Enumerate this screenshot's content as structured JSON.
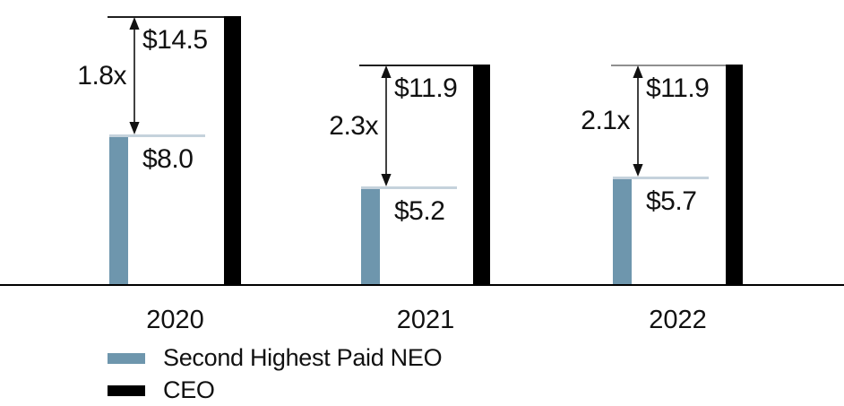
{
  "chart_data": {
    "type": "bar",
    "title": "",
    "categories": [
      "2020",
      "2021",
      "2022"
    ],
    "series": [
      {
        "name": "Second Highest Paid NEO",
        "color": "#6E96AD",
        "values": [
          8.0,
          5.2,
          5.7
        ]
      },
      {
        "name": "CEO",
        "color": "#000000",
        "values": [
          14.5,
          11.9,
          11.9
        ]
      }
    ],
    "annotations": {
      "ratio_labels": [
        "1.8x",
        "2.3x",
        "2.1x"
      ],
      "neo_value_labels": [
        "$8.0",
        "$5.2",
        "$5.7"
      ],
      "ceo_value_labels": [
        "$14.5",
        "$11.9",
        "$11.9"
      ]
    },
    "xlabel": "",
    "ylabel": "",
    "ylim": [
      0,
      14.5
    ],
    "grid": false,
    "legend_position": "bottom-left"
  },
  "legend": {
    "items": [
      {
        "label": "Second Highest Paid NEO",
        "color": "#6E96AD"
      },
      {
        "label": "CEO",
        "color": "#000000"
      }
    ]
  },
  "colors": {
    "neo_bar": "#6E96AD",
    "ceo_bar": "#000000",
    "neo_leader_line": "#C5D2DC",
    "ceo_leader_line_dark": "#1f1f1f",
    "ceo_leader_line_gray": "#8f8f8f",
    "axis": "#000000",
    "text": "#111111"
  }
}
